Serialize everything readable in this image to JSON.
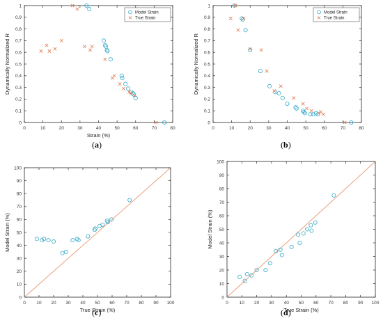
{
  "colors": {
    "model": "#33a9c9",
    "true": "#e07a4f",
    "identity_line": "#e8a07e",
    "axis": "#262626"
  },
  "panel_labels": [
    "a",
    "b",
    "c",
    "d"
  ],
  "chart_data": [
    {
      "type": "scatter",
      "panel": "a",
      "xlabel": "Strain (%)",
      "ylabel": "Dynamically Normalized R",
      "xlim": [
        0,
        80
      ],
      "ylim": [
        0,
        1
      ],
      "xticks": [
        "0",
        "10",
        "20",
        "30",
        "40",
        "50",
        "60",
        "70",
        "80"
      ],
      "yticks": [
        "0",
        "0.1",
        "0.2",
        "0.3",
        "0.4",
        "0.5",
        "0.6",
        "0.7",
        "0.8",
        "0.9",
        "1"
      ],
      "legend": "top-right",
      "series": [
        {
          "name": "Model Strain",
          "marker": "circle",
          "x": [
            33.5,
            35.0,
            42.8,
            43.5,
            44.0,
            44.5,
            44.8,
            46.5,
            52.5,
            52.8,
            54.5,
            56.0,
            57.5,
            58.5,
            59.0,
            60.0,
            75.5
          ],
          "y": [
            1.0,
            0.97,
            0.7,
            0.66,
            0.65,
            0.62,
            0.61,
            0.54,
            0.4,
            0.38,
            0.33,
            0.29,
            0.26,
            0.25,
            0.24,
            0.21,
            0.0
          ]
        },
        {
          "name": "True Strain",
          "marker": "x",
          "x": [
            9.0,
            12.0,
            13.5,
            16.5,
            20.0,
            26.0,
            28.5,
            32.5,
            35.5,
            36.5,
            43.5,
            47.5,
            48.5,
            51.5,
            53.5,
            56.5,
            57.5,
            59.5,
            71.0
          ],
          "y": [
            0.61,
            0.66,
            0.61,
            0.63,
            0.7,
            1.0,
            0.97,
            0.65,
            0.62,
            0.65,
            0.54,
            0.38,
            0.4,
            0.33,
            0.29,
            0.26,
            0.25,
            0.23,
            0.0
          ]
        }
      ]
    },
    {
      "type": "scatter",
      "panel": "b",
      "xlabel": "",
      "ylabel": "Dynamically Normalized R",
      "xlim": [
        0,
        80
      ],
      "ylim": [
        0,
        1
      ],
      "xticks": [
        "0",
        "10",
        "20",
        "30",
        "40",
        "50",
        "60",
        "70",
        "80"
      ],
      "yticks": [
        "0",
        "0.1",
        "0.2",
        "0.3",
        "0.4",
        "0.5",
        "0.6",
        "0.7",
        "0.8",
        "0.9",
        "1"
      ],
      "legend": "top-right",
      "series": [
        {
          "name": "Model Strain",
          "marker": "circle",
          "x": [
            11.5,
            15.5,
            16.0,
            17.5,
            20.0,
            25.5,
            30.5,
            33.5,
            35.5,
            37.5,
            40.0,
            44.5,
            45.0,
            48.5,
            49.0,
            49.5,
            52.5,
            54.0,
            55.5,
            56.5,
            74.5
          ],
          "y": [
            1.0,
            0.89,
            0.88,
            0.79,
            0.62,
            0.44,
            0.31,
            0.26,
            0.25,
            0.21,
            0.16,
            0.13,
            0.12,
            0.1,
            0.09,
            0.08,
            0.07,
            0.07,
            0.08,
            0.07,
            0.0
          ]
        },
        {
          "name": "True Strain",
          "marker": "x",
          "x": [
            9.5,
            12.0,
            13.5,
            16.5,
            20.0,
            26.0,
            29.0,
            33.0,
            36.5,
            43.5,
            48.5,
            50.5,
            53.0,
            57.0,
            58.0,
            59.5,
            71.0
          ],
          "y": [
            0.89,
            1.0,
            0.79,
            0.89,
            0.63,
            0.62,
            0.44,
            0.27,
            0.31,
            0.21,
            0.16,
            0.12,
            0.1,
            0.08,
            0.09,
            0.07,
            0.0
          ]
        }
      ]
    },
    {
      "type": "scatter",
      "panel": "c",
      "xlabel": "True Strain (%)",
      "ylabel": "Model Strain (%)",
      "xlim": [
        0,
        100
      ],
      "ylim": [
        0,
        100
      ],
      "xticks": [
        "0",
        "10",
        "20",
        "30",
        "40",
        "50",
        "60",
        "70",
        "80",
        "90",
        "100"
      ],
      "yticks": [
        "0",
        "10",
        "20",
        "30",
        "40",
        "50",
        "60",
        "70",
        "80",
        "90",
        "100"
      ],
      "identity_line": true,
      "series": [
        {
          "name": "",
          "marker": "circle",
          "x": [
            8.5,
            12.0,
            13.5,
            16.5,
            20.0,
            26.0,
            28.5,
            33.0,
            36.0,
            37.0,
            43.5,
            48.0,
            48.5,
            51.5,
            53.5,
            56.5,
            57.0,
            59.5,
            72.0
          ],
          "y": [
            45,
            44,
            45,
            44,
            43,
            34,
            35,
            44,
            45,
            44,
            47,
            52,
            53,
            55,
            56,
            59,
            58,
            60,
            75
          ]
        }
      ]
    },
    {
      "type": "scatter",
      "panel": "d",
      "xlabel": "True Strain (%)",
      "ylabel": "Model Strain (%)",
      "xlim": [
        0,
        100
      ],
      "ylim": [
        0,
        100
      ],
      "xticks": [
        "0",
        "10",
        "20",
        "30",
        "40",
        "50",
        "60",
        "70",
        "80",
        "90",
        "100"
      ],
      "yticks": [
        "0",
        "10",
        "20",
        "30",
        "40",
        "50",
        "60",
        "70",
        "80",
        "90",
        "100"
      ],
      "identity_line": true,
      "series": [
        {
          "name": "",
          "marker": "circle",
          "x": [
            8.5,
            12.0,
            13.5,
            16.5,
            20.0,
            26.0,
            29.0,
            33.0,
            36.0,
            37.0,
            43.5,
            48.0,
            49.0,
            51.5,
            54.0,
            56.5,
            57.0,
            59.5,
            72.0
          ],
          "y": [
            15,
            12,
            17,
            16,
            20,
            20,
            25,
            34,
            35,
            31,
            37,
            46,
            40,
            47,
            50,
            53,
            49,
            55,
            75
          ]
        }
      ]
    }
  ]
}
